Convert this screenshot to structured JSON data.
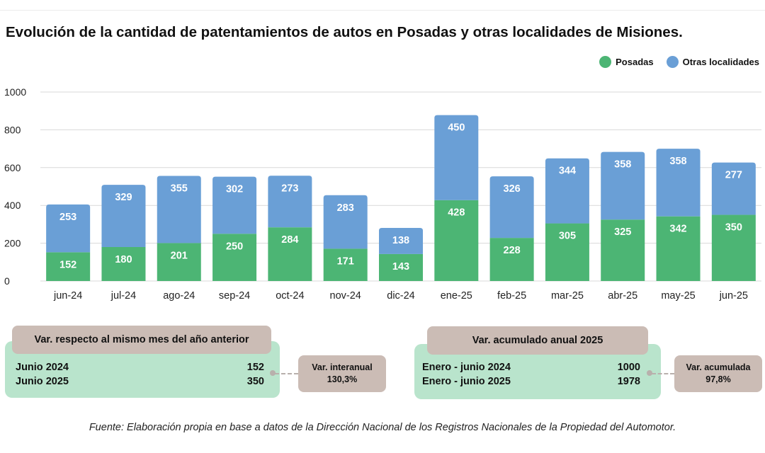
{
  "title": "Evolución de la cantidad de patentamientos de autos en Posadas y otras localidades de Misiones.",
  "legend": [
    {
      "label": "Posadas",
      "color": "#4cb574"
    },
    {
      "label": "Otras localidades",
      "color": "#6a9fd6"
    }
  ],
  "chart_data": {
    "type": "bar",
    "stacked": true,
    "categories": [
      "jun-24",
      "jul-24",
      "ago-24",
      "sep-24",
      "oct-24",
      "nov-24",
      "dic-24",
      "ene-25",
      "feb-25",
      "mar-25",
      "abr-25",
      "may-25",
      "jun-25"
    ],
    "series": [
      {
        "name": "Posadas",
        "color": "#4cb574",
        "values": [
          152,
          180,
          201,
          250,
          284,
          171,
          143,
          428,
          228,
          305,
          325,
          342,
          350
        ]
      },
      {
        "name": "Otras localidades",
        "color": "#6a9fd6",
        "values": [
          253,
          329,
          355,
          302,
          273,
          283,
          138,
          450,
          326,
          344,
          358,
          358,
          277
        ]
      }
    ],
    "yticks": [
      0,
      200,
      400,
      600,
      800,
      1000
    ],
    "ylim": [
      0,
      1000
    ],
    "grid": true,
    "legend_position": "top-right"
  },
  "left_panel": {
    "heading": "Var. respecto al mismo mes del año anterior",
    "rows": [
      {
        "label": "Junio 2024",
        "value": "152"
      },
      {
        "label": "Junio 2025",
        "value": "350"
      }
    ],
    "var_title": "Var. interanual",
    "var_value": "130,3%"
  },
  "right_panel": {
    "heading": "Var. acumulado anual 2025",
    "rows": [
      {
        "label": "Enero - junio 2024",
        "value": "1000"
      },
      {
        "label": "Enero - junio 2025",
        "value": "1978"
      }
    ],
    "var_title": "Var. acumulada",
    "var_value": "97,8%"
  },
  "source": "Fuente: Elaboración propia en base a datos de la Dirección Nacional de los Registros Nacionales de la Propiedad del Automotor.",
  "colors": {
    "panel_bg": "#b9e4cc",
    "label_bg": "#cbbcb5",
    "grid": "#d9d9d9"
  }
}
